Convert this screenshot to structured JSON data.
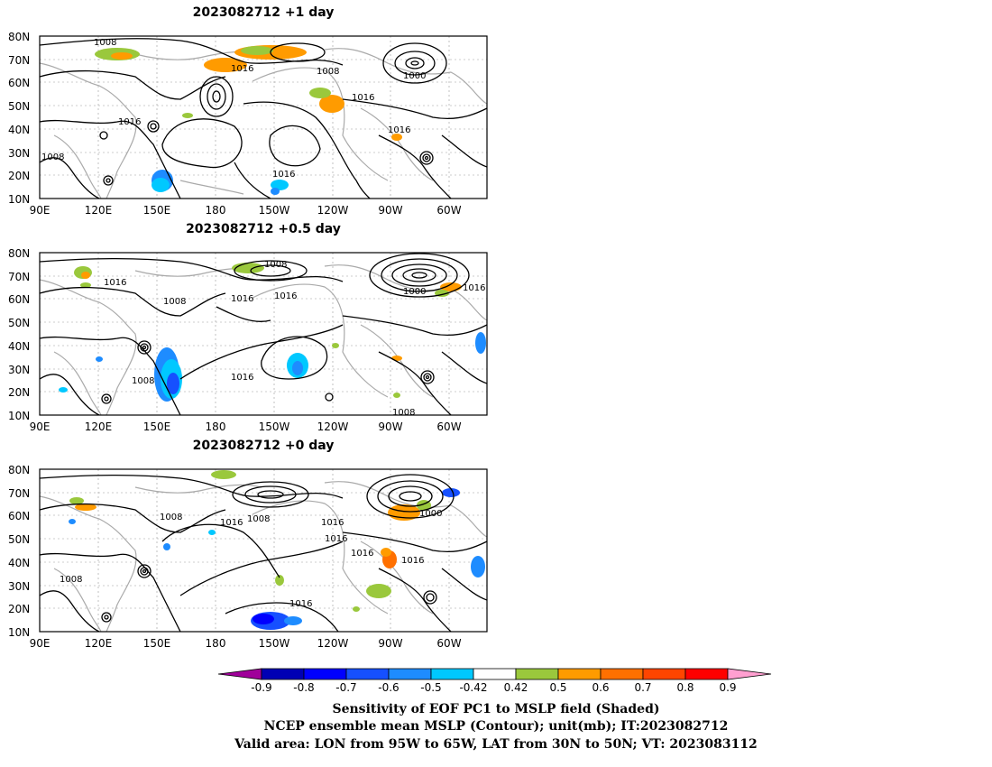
{
  "panels": [
    {
      "title": "2023082712  +1 day",
      "contour_labels": [
        "1008",
        "1016",
        "1008",
        "1000",
        "1016",
        "1016",
        "1016",
        "1008",
        "1016"
      ]
    },
    {
      "title": "2023082712  +0.5 day",
      "contour_labels": [
        "1016",
        "1008",
        "1008",
        "1016",
        "1016",
        "1000",
        "1016",
        "1008",
        "1016",
        "1008"
      ]
    },
    {
      "title": "2023082712  +0 day",
      "contour_labels": [
        "1008",
        "1016",
        "1008",
        "1016",
        "1016",
        "1000",
        "1016",
        "1016",
        "1008",
        "1016"
      ]
    }
  ],
  "axes": {
    "lat_labels": [
      "80N",
      "70N",
      "60N",
      "50N",
      "40N",
      "30N",
      "20N",
      "10N"
    ],
    "lon_labels": [
      "90E",
      "120E",
      "150E",
      "180",
      "150W",
      "120W",
      "90W",
      "60W"
    ]
  },
  "colorbar": {
    "labels": [
      "-0.9",
      "-0.8",
      "-0.7",
      "-0.6",
      "-0.5",
      "-0.42",
      "0.42",
      "0.5",
      "0.6",
      "0.7",
      "0.8",
      "0.9"
    ],
    "colors": [
      "#a0009a",
      "#0000b4",
      "#0000ff",
      "#1650ff",
      "#1e8cff",
      "#00c8ff",
      "#ffffff",
      "#9ac83c",
      "#ff9b00",
      "#ff7000",
      "#ff4500",
      "#ff0000",
      "#ff9fd0"
    ]
  },
  "caption": {
    "line1": "Sensitivity of EOF PC1 to MSLP field (Shaded)",
    "line2": "NCEP ensemble mean MSLP (Contour); unit(mb); IT:2023082712",
    "line3": "Valid area: LON from 95W to 65W, LAT from 30N to 50N; VT: 2023083112"
  }
}
